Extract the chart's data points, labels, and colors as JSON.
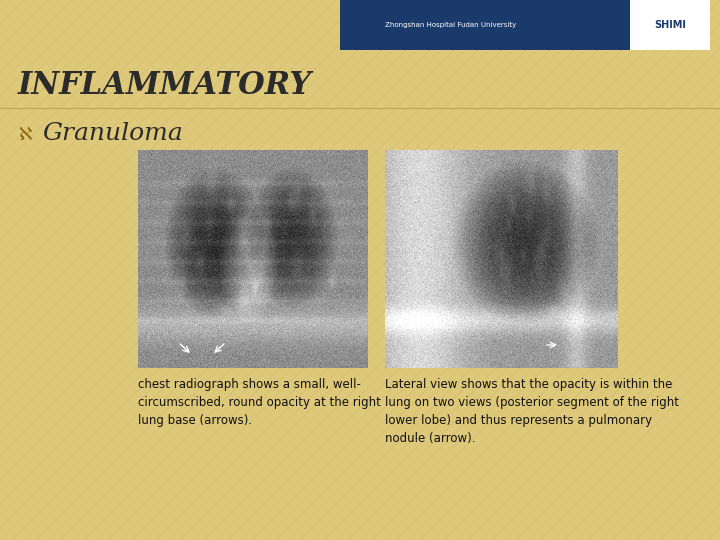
{
  "background_color": "#DEC87A",
  "stripe_color": "#C9B468",
  "title_text": "INFLAMMATORY",
  "title_fontsize": 22,
  "title_color": "#2B2B2B",
  "subtitle_prefix_color": "#8B6914",
  "subtitle_text": "Granuloma",
  "subtitle_fontsize": 18,
  "subtitle_color": "#2B2B2B",
  "header_bar_color": "#1A3A6B",
  "caption_left": "chest radiograph shows a small, well-\ncircumscribed, round opacity at the right\nlung base (arrows).",
  "caption_right": "Lateral view shows that the opacity is within the\nlung on two views (posterior segment of the right\nlower lobe) and thus represents a pulmonary\nnodule (arrow).",
  "caption_fontsize": 8.5,
  "caption_color": "#111111",
  "divider_color": "#C8AA50"
}
